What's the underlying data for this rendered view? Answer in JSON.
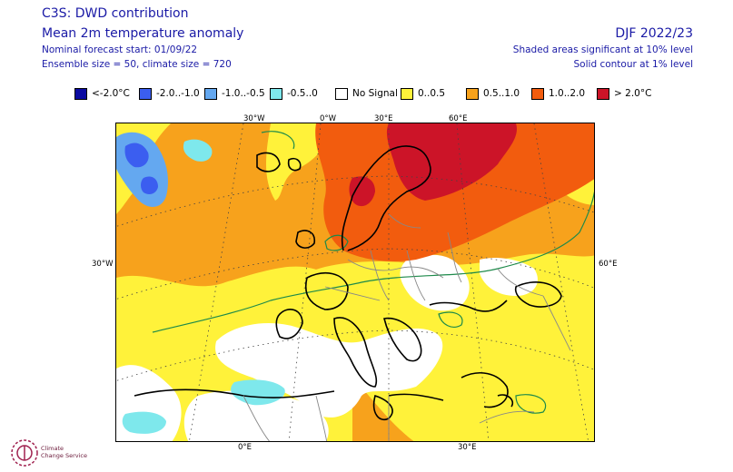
{
  "header": {
    "title": "C3S: DWD contribution",
    "subtitle": "Mean 2m temperature anomaly",
    "forecast_start": "Nominal forecast start: 01/09/22",
    "ensemble": "Ensemble size = 50, climate size = 720",
    "season": "DJF 2022/23",
    "significance_shaded": "Shaded areas significant at 10% level",
    "significance_contour": "Solid contour at 1% level"
  },
  "legend": [
    {
      "label": "<-2.0°C",
      "color": "#0a0aa0"
    },
    {
      "label": "-2.0..-1.0",
      "color": "#3b5ef0"
    },
    {
      "label": "-1.0..-0.5",
      "color": "#64a8f0"
    },
    {
      "label": "-0.5..0",
      "color": "#7ee8ec"
    },
    {
      "label": "No Signal",
      "color": "#ffffff"
    },
    {
      "label": "0..0.5",
      "color": "#fff23a"
    },
    {
      "label": "0.5..1.0",
      "color": "#f7a21c"
    },
    {
      "label": "1.0..2.0",
      "color": "#f25c0e"
    },
    {
      "label": "> 2.0°C",
      "color": "#cc1428"
    }
  ],
  "axis_labels": {
    "top": [
      "30°W",
      "0°W",
      "30°E",
      "60°E"
    ],
    "left": "30°W",
    "right": "60°E",
    "bottom": [
      "0°E",
      "30°E"
    ]
  },
  "logo": {
    "line1": "Climate",
    "line2": "Change Service"
  }
}
